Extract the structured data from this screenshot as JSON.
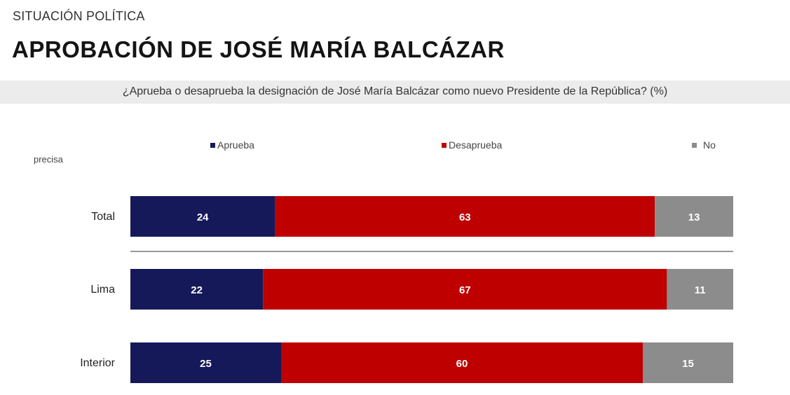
{
  "header": {
    "kicker": "SITUACIÓN POLÍTICA",
    "title": "APROBACIÓN DE JOSÉ MARÍA BALCÁZAR",
    "question": "¿Aprueba o desaprueba la designación de José María Balcázar como nuevo Presidente de la República? (%)"
  },
  "legend": {
    "aprueba": "Aprueba",
    "desaprueba": "Desaprueba",
    "no_precisa_part1": "No",
    "no_precisa_part2": "precisa"
  },
  "colors": {
    "aprueba": "#15195a",
    "desaprueba": "#bf0000",
    "no_precisa": "#8c8c8c"
  },
  "chart_data": {
    "type": "bar",
    "orientation": "horizontal",
    "stacked": true,
    "categories": [
      "Total",
      "Lima",
      "Interior"
    ],
    "series": [
      {
        "name": "Aprueba",
        "values": [
          24,
          22,
          25
        ]
      },
      {
        "name": "Desaprueba",
        "values": [
          63,
          67,
          60
        ]
      },
      {
        "name": "No precisa",
        "values": [
          13,
          11,
          15
        ]
      }
    ],
    "xlim": [
      0,
      100
    ],
    "grid": false,
    "legend_position": "top"
  }
}
